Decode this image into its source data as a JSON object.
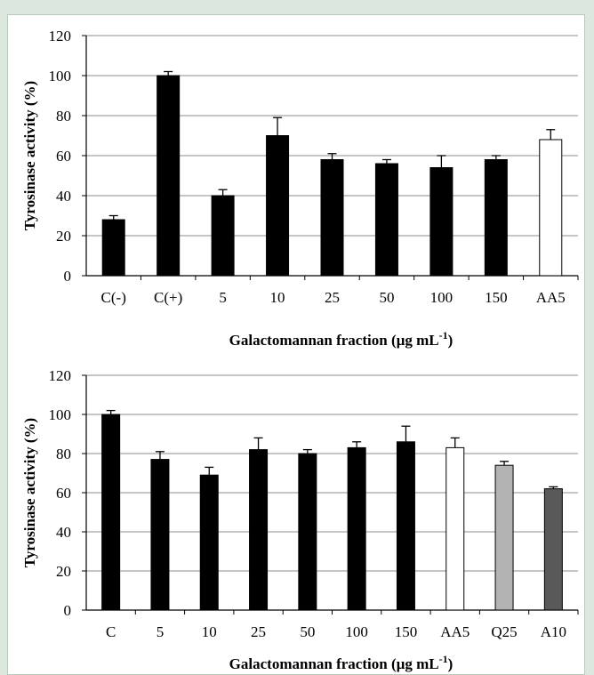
{
  "colors": {
    "background": "#dce8dd",
    "panel": "#ffffff",
    "bar_black": "#000000",
    "bar_white": "#ffffff",
    "bar_light_gray": "#b3b3b3",
    "bar_dark_gray": "#595959",
    "gridline": "#8c8c8c"
  },
  "chart_data": [
    {
      "type": "bar",
      "ylabel": "Tyrosinase activity (%)",
      "xlabel_parts": {
        "main": "Galactomannan fraction (µg mL",
        "sup": "-1",
        "end": ")"
      },
      "ylim": [
        0,
        120
      ],
      "yticks": [
        "0",
        "20",
        "40",
        "60",
        "80",
        "100",
        "120"
      ],
      "grid": true,
      "legend": "none",
      "categories": [
        "C(-)",
        "C(+)",
        "5",
        "10",
        "25",
        "50",
        "100",
        "150",
        "AA5"
      ],
      "values": [
        28,
        100,
        40,
        70,
        58,
        56,
        54,
        58,
        68
      ],
      "errors": [
        2,
        2,
        3,
        9,
        3,
        2,
        6,
        2,
        5
      ],
      "bar_colors": [
        "#000000",
        "#000000",
        "#000000",
        "#000000",
        "#000000",
        "#000000",
        "#000000",
        "#000000",
        "#ffffff"
      ]
    },
    {
      "type": "bar",
      "ylabel": "Tyrosinase activity (%)",
      "xlabel_parts": {
        "main": "Galactomannan fraction (µg mL",
        "sup": "-1",
        "end": ")"
      },
      "ylim": [
        0,
        120
      ],
      "yticks": [
        "0",
        "20",
        "40",
        "60",
        "80",
        "100",
        "120"
      ],
      "grid": true,
      "legend": "none",
      "categories": [
        "C",
        "5",
        "10",
        "25",
        "50",
        "100",
        "150",
        "AA5",
        "Q25",
        "A10"
      ],
      "values": [
        100,
        77,
        69,
        82,
        80,
        83,
        86,
        83,
        74,
        62
      ],
      "errors": [
        2,
        4,
        4,
        6,
        2,
        3,
        8,
        5,
        2,
        1
      ],
      "bar_colors": [
        "#000000",
        "#000000",
        "#000000",
        "#000000",
        "#000000",
        "#000000",
        "#000000",
        "#ffffff",
        "#b3b3b3",
        "#595959"
      ]
    }
  ]
}
